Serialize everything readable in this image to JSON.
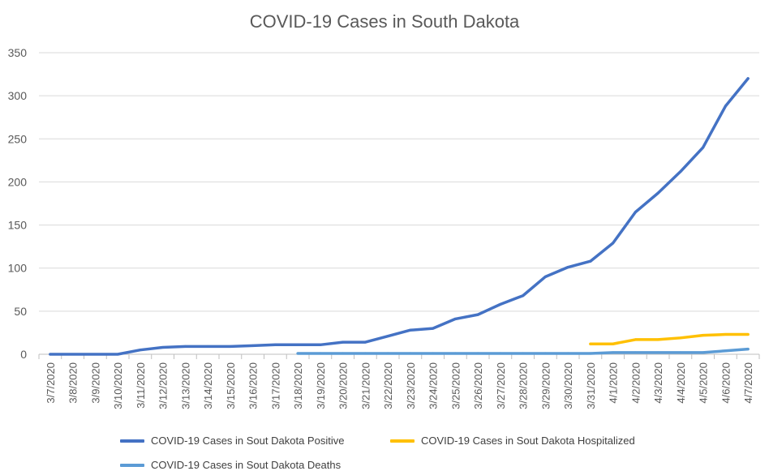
{
  "chart_data": {
    "type": "line",
    "title": "COVID-19 Cases in South Dakota",
    "xlabel": "",
    "ylabel": "",
    "ylim": [
      0,
      350
    ],
    "yticks": [
      0,
      50,
      100,
      150,
      200,
      250,
      300,
      350
    ],
    "grid": true,
    "legend_position": "bottom",
    "categories": [
      "3/7/2020",
      "3/8/2020",
      "3/9/2020",
      "3/10/2020",
      "3/11/2020",
      "3/12/2020",
      "3/13/2020",
      "3/14/2020",
      "3/15/2020",
      "3/16/2020",
      "3/17/2020",
      "3/18/2020",
      "3/19/2020",
      "3/20/2020",
      "3/21/2020",
      "3/22/2020",
      "3/23/2020",
      "3/24/2020",
      "3/25/2020",
      "3/26/2020",
      "3/27/2020",
      "3/28/2020",
      "3/29/2020",
      "3/30/2020",
      "3/31/2020",
      "4/1/2020",
      "4/2/2020",
      "4/3/2020",
      "4/4/2020",
      "4/5/2020",
      "4/6/2020",
      "4/7/2020"
    ],
    "series": [
      {
        "name": "COVID-19 Cases in Sout Dakota Positive",
        "color": "#4472C4",
        "values": [
          0,
          0,
          0,
          0,
          5,
          8,
          9,
          9,
          9,
          10,
          11,
          11,
          11,
          14,
          14,
          21,
          28,
          30,
          41,
          46,
          58,
          68,
          90,
          101,
          108,
          129,
          165,
          187,
          212,
          240,
          288,
          320
        ]
      },
      {
        "name": "COVID-19 Cases in Sout Dakota Hospitalized",
        "color": "#FFC000",
        "values": [
          null,
          null,
          null,
          null,
          null,
          null,
          null,
          null,
          null,
          null,
          null,
          null,
          null,
          null,
          null,
          null,
          null,
          null,
          null,
          null,
          null,
          null,
          null,
          null,
          12,
          12,
          17,
          17,
          19,
          22,
          23,
          23
        ]
      },
      {
        "name": "COVID-19 Cases in Sout Dakota Deaths",
        "color": "#5B9BD5",
        "values": [
          null,
          null,
          null,
          null,
          null,
          null,
          null,
          null,
          null,
          null,
          null,
          1,
          1,
          1,
          1,
          1,
          1,
          1,
          1,
          1,
          1,
          1,
          1,
          1,
          1,
          2,
          2,
          2,
          2,
          2,
          4,
          6
        ]
      }
    ]
  }
}
